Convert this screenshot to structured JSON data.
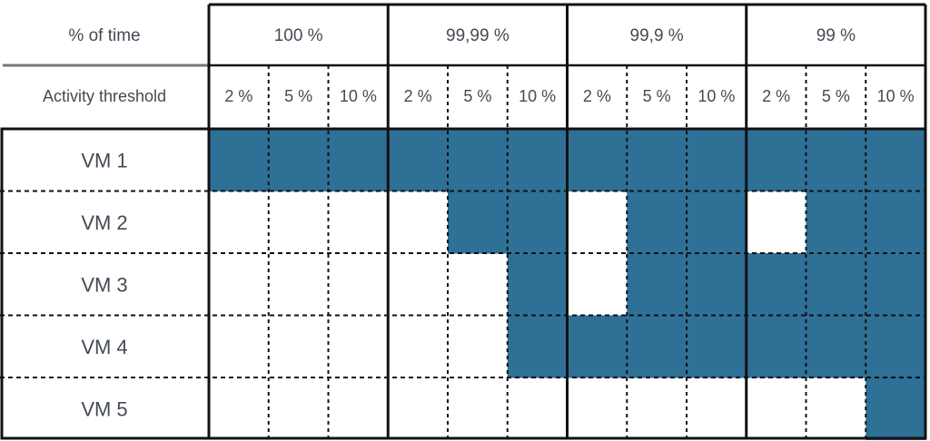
{
  "header": {
    "row1_label": "% of time",
    "row2_label": "Activity threshold",
    "time_groups": [
      "100 %",
      "99,99 %",
      "99,9 %",
      "99 %"
    ],
    "thresholds": [
      "2 %",
      "5 %",
      "10 %"
    ]
  },
  "rows": [
    "VM 1",
    "VM 2",
    "VM 3",
    "VM 4",
    "VM 5"
  ],
  "grid": [
    [
      1,
      1,
      1,
      1,
      1,
      1,
      1,
      1,
      1,
      1,
      1,
      1
    ],
    [
      0,
      0,
      0,
      0,
      1,
      1,
      0,
      1,
      1,
      0,
      1,
      1
    ],
    [
      0,
      0,
      0,
      0,
      0,
      1,
      0,
      1,
      1,
      1,
      1,
      1
    ],
    [
      0,
      0,
      0,
      0,
      0,
      1,
      1,
      1,
      1,
      1,
      1,
      1
    ],
    [
      0,
      0,
      0,
      0,
      0,
      0,
      0,
      0,
      0,
      0,
      0,
      1
    ]
  ],
  "colors": {
    "fill": "#2e7096",
    "text": "#444a55",
    "border": "#111111",
    "separator": "#777777"
  }
}
